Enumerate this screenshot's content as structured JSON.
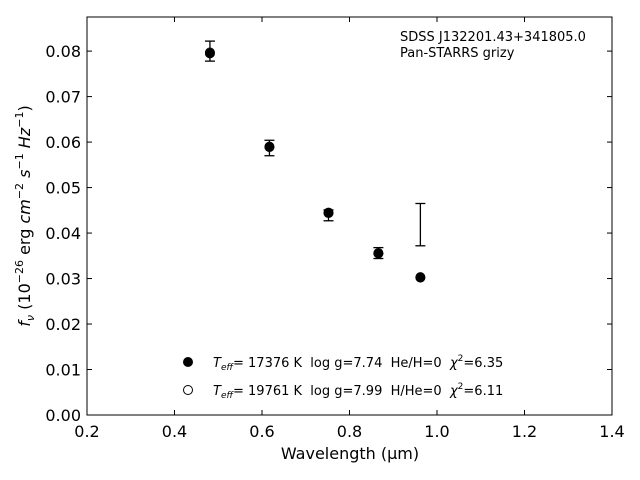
{
  "chart_data": {
    "type": "scatter",
    "annotation": [
      "SDSS J132201.43+341805.0",
      "Pan-STARRS grizy"
    ],
    "xlabel": "Wavelength (μm)",
    "ylabel": "f_ν (10^-26 erg cm^-2 s^-1 Hz^-1)",
    "xlim": [
      0.2,
      1.4
    ],
    "ylim": [
      0.0,
      0.0875
    ],
    "xticks": [
      "0.2",
      "0.4",
      "0.6",
      "0.8",
      "1.0",
      "1.2",
      "1.4"
    ],
    "yticks": [
      "0.00",
      "0.01",
      "0.02",
      "0.03",
      "0.04",
      "0.05",
      "0.06",
      "0.07",
      "0.08"
    ],
    "observed": {
      "x": [
        0.481,
        0.617,
        0.752,
        0.866,
        0.962
      ],
      "y": [
        0.0798,
        0.0587,
        0.0441,
        0.0357,
        0.0418
      ],
      "yerr_low": [
        0.0778,
        0.057,
        0.0427,
        0.0344,
        0.0372
      ],
      "yerr_high": [
        0.0822,
        0.0604,
        0.0451,
        0.0368,
        0.0465
      ],
      "color": "#000000"
    },
    "series": [
      {
        "label_parts": {
          "teff_sym": "T",
          "teff_sub": "eff",
          "teff_rest": "= 17376 K  log g=7.74  He/H=0  ",
          "chi_sym": "χ",
          "chi_sup": "2",
          "chi_rest": "=6.35"
        },
        "marker": "filled-circle",
        "x": [
          0.481,
          0.617,
          0.752,
          0.866,
          0.962
        ],
        "y": [
          0.0795,
          0.059,
          0.0445,
          0.0355,
          0.0302
        ]
      },
      {
        "label_parts": {
          "teff_sym": "T",
          "teff_sub": "eff",
          "teff_rest": "= 19761 K  log g=7.99  H/He=0  ",
          "chi_sym": "χ",
          "chi_sup": "2",
          "chi_rest": "=6.11"
        },
        "marker": "open-circle",
        "x": [
          0.481,
          0.617,
          0.752,
          0.866,
          0.962
        ],
        "y": [
          0.0797,
          0.0589,
          0.0444,
          0.0356,
          0.0303
        ]
      }
    ],
    "legend_position": "bottom-center",
    "grid": false
  }
}
